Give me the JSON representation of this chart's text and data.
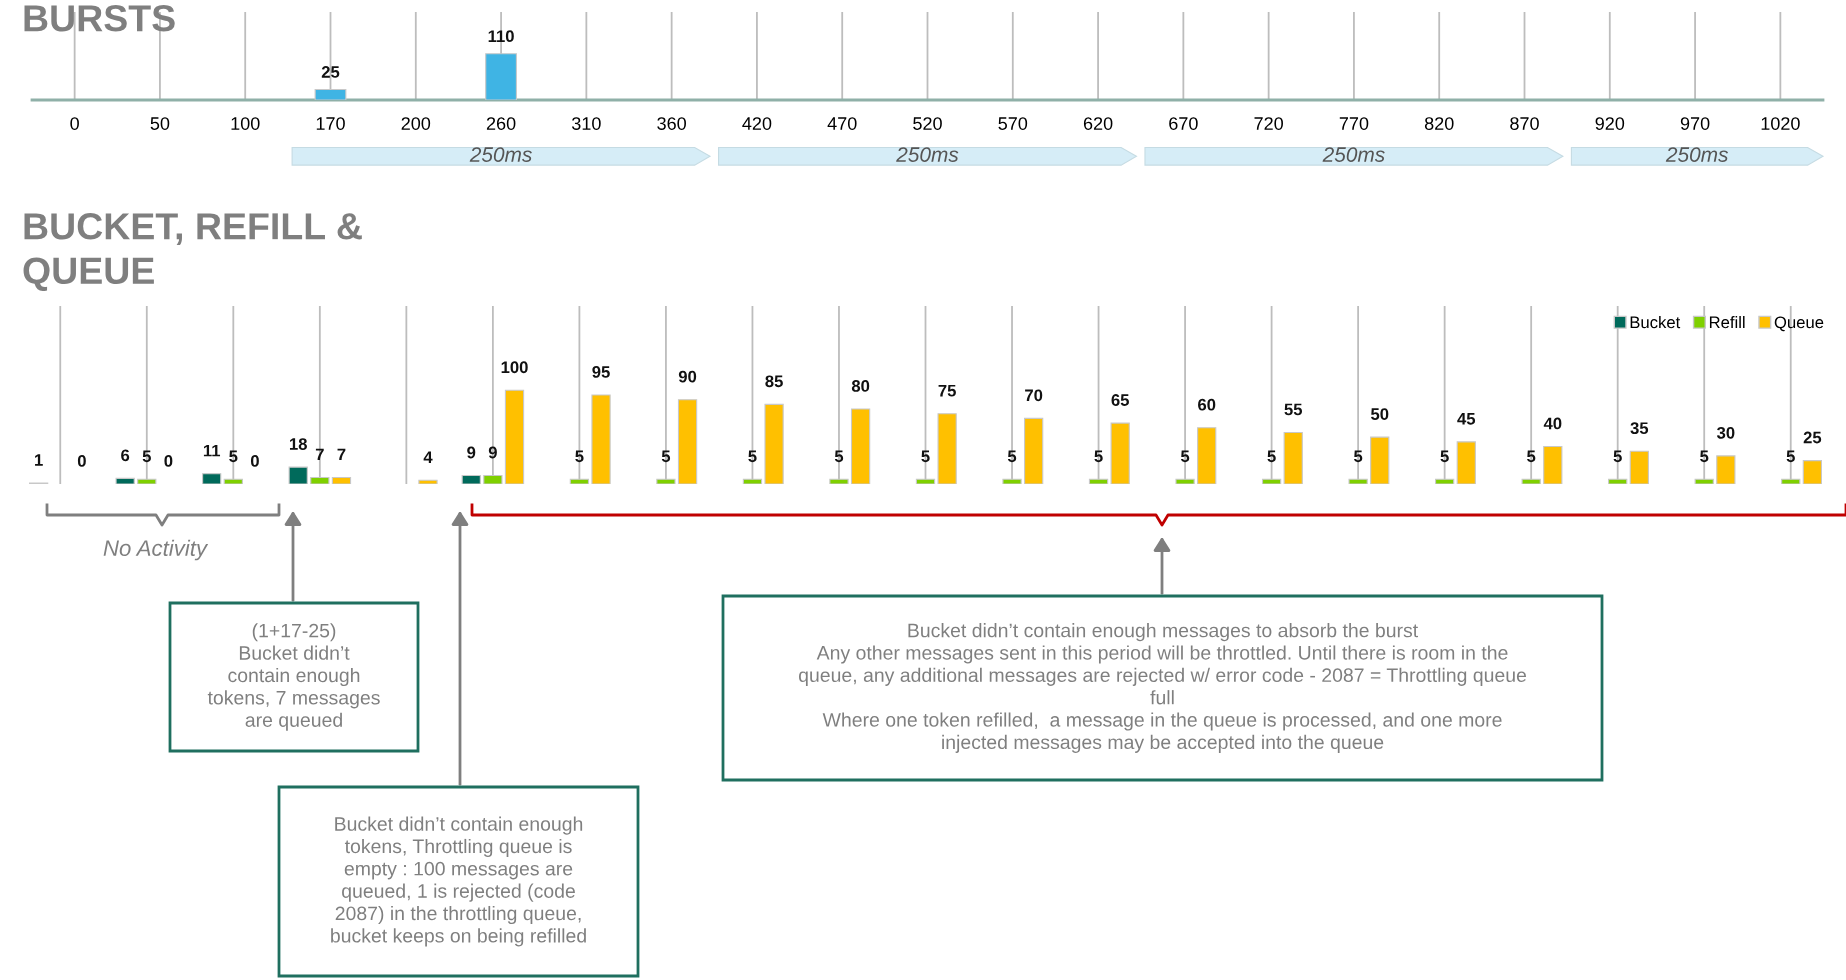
{
  "chart_data": [
    {
      "type": "bar",
      "title": "BURSTS",
      "categories": [
        "0",
        "50",
        "100",
        "170",
        "200",
        "260",
        "310",
        "360",
        "420",
        "470",
        "520",
        "570",
        "620",
        "670",
        "720",
        "770",
        "820",
        "870",
        "920",
        "970",
        "1020"
      ],
      "values": [
        null,
        null,
        null,
        25,
        null,
        110,
        null,
        null,
        null,
        null,
        null,
        null,
        null,
        null,
        null,
        null,
        null,
        null,
        null,
        null,
        null
      ],
      "color": "#3fb4e4",
      "data_labels": true,
      "grid": "x",
      "tick_labels": "x",
      "annotations": [
        "250ms",
        "250ms",
        "250ms",
        "250ms"
      ]
    },
    {
      "type": "bar",
      "title": "BUCKET, REFILL &\nQUEUE",
      "categories": [
        null,
        null,
        null,
        null,
        null,
        null,
        null,
        null,
        null,
        null,
        null,
        null,
        null,
        null,
        null,
        null,
        null,
        null,
        null,
        null,
        null
      ],
      "series": [
        {
          "name": "Bucket",
          "color": "#006a5b",
          "colors": [
            "#ffffff",
            "#006a5b",
            "#006a5b",
            "#006a5b",
            "#006a5b",
            "#006a5b",
            "#006a5b",
            "#006a5b",
            "#006a5b",
            "#006a5b",
            "#006a5b",
            "#006a5b",
            "#006a5b",
            "#006a5b",
            "#006a5b",
            "#006a5b",
            "#006a5b",
            "#006a5b",
            "#006a5b",
            "#006a5b",
            "#006a5b"
          ],
          "values": [
            1,
            6,
            11,
            18,
            null,
            9,
            null,
            null,
            null,
            null,
            null,
            null,
            null,
            null,
            null,
            null,
            null,
            null,
            null,
            null,
            null
          ]
        },
        {
          "name": "Refill",
          "color": "#7fd000",
          "values": [
            null,
            5,
            5,
            7,
            null,
            9,
            5,
            5,
            5,
            5,
            5,
            5,
            5,
            5,
            5,
            5,
            5,
            5,
            5,
            5,
            5
          ]
        },
        {
          "name": "Queue",
          "color": "#ffc000",
          "values": [
            0,
            0,
            0,
            7,
            4,
            100,
            95,
            90,
            85,
            80,
            75,
            70,
            65,
            60,
            55,
            50,
            45,
            40,
            35,
            30,
            25
          ]
        }
      ],
      "data_labels": true,
      "grid": "x",
      "tick_labels": false,
      "legend": "top right",
      "annotations": [
        "No Activity",
        "(1+17-25)\nBucket didn’t\ncontain enough\ntokens, 7 messages\nare queued",
        "Bucket didn’t contain enough\ntokens, Throttling queue is\nempty : 100 messages are\nqueued, 1 is rejected (code\n2087) in the throttling queue,\nbucket keeps on being refilled",
        "Bucket didn’t contain enough messages to absorb the burst\nAny other messages sent in this period will be throttled. Until there is room in the\nqueue, any additional messages are rejected w/ error code - 2087 = Throttling queue\nfull\nWhere one token refilled,  a message in the queue is processed, and one more\ninjected messages may be accepted into the queue"
      ]
    }
  ]
}
